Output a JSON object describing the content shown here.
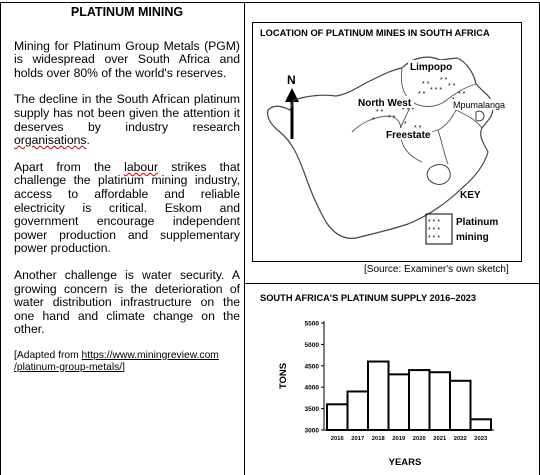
{
  "left": {
    "title": "PLATINUM MINING",
    "p1": "Mining for Platinum Group Metals (PGM) is widespread over South Africa and holds over 80% of the world's reserves.",
    "p2_before": "The decline in the South African platinum supply has not been given the attention it deserves by industry research ",
    "p2_word": "organisations",
    "p2_after": ".",
    "p3_before": "Apart from the ",
    "p3_word": "labour",
    "p3_after": " strikes that challenge the platinum mining industry, access to affordable and reliable electricity is critical. Eskom and government encourage independent power production and supplementary power production.",
    "p4": "Another challenge is water security. A growing concern is the deterioration of water distribution infrastructure on the one hand and climate change on the other.",
    "source_prefix": "[Adapted from ",
    "source_link": "https://www.miningreview.com /platinum-group-metals/",
    "source_suffix": "]"
  },
  "map": {
    "title": "LOCATION OF PLATINUM MINES IN SOUTH AFRICA",
    "north": "N",
    "labels": {
      "limpopo": "Limpopo",
      "north_west": "North West",
      "mpumalanga": "Mpumalanga",
      "freestate": "Freestate"
    },
    "key_title": "KEY",
    "key_label_1": "Platinum",
    "key_label_2": "mining",
    "source": "[Source: Examiner's own sketch]"
  },
  "chart_data": {
    "type": "bar",
    "title": "SOUTH AFRICA'S PLATINUM SUPPLY 2016–2023",
    "xlabel": "YEARS",
    "ylabel": "TONS",
    "categories": [
      "2016",
      "2017",
      "2018",
      "2019",
      "2020",
      "2021",
      "2022",
      "2023"
    ],
    "values": [
      3600,
      3900,
      4600,
      4300,
      4400,
      4350,
      4150,
      3250
    ],
    "ylim": [
      3000,
      5500
    ],
    "yticks": [
      3000,
      3500,
      4000,
      4500,
      5000,
      5500
    ],
    "grid": false
  }
}
